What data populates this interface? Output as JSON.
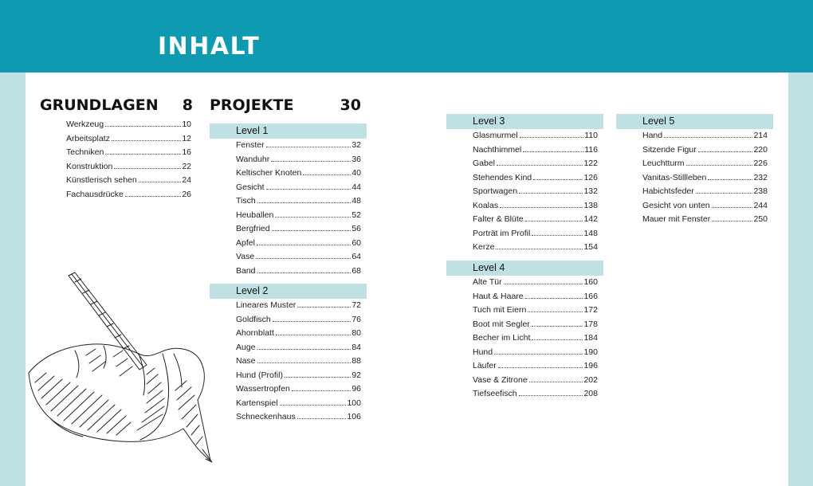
{
  "header": {
    "title": "INHALT"
  },
  "grundlagen": {
    "title": "GRUNDLAGEN",
    "page": "8",
    "items": [
      {
        "label": "Werkzeug",
        "page": "10"
      },
      {
        "label": "Arbeitsplatz",
        "page": "12"
      },
      {
        "label": "Techniken",
        "page": "16"
      },
      {
        "label": "Konstruktion",
        "page": "22"
      },
      {
        "label": "Künstlerisch sehen",
        "page": "24"
      },
      {
        "label": "Fachausdrücke",
        "page": "26"
      }
    ]
  },
  "projekte": {
    "title": "PROJEKTE",
    "page": "30"
  },
  "levels": [
    {
      "label": "Level 1",
      "items": [
        {
          "label": "Fenster",
          "page": "32"
        },
        {
          "label": "Wanduhr",
          "page": "36"
        },
        {
          "label": "Keltischer Knoten",
          "page": "40"
        },
        {
          "label": "Gesicht",
          "page": "44"
        },
        {
          "label": "Tisch",
          "page": "48"
        },
        {
          "label": "Heuballen",
          "page": "52"
        },
        {
          "label": "Bergfried",
          "page": "56"
        },
        {
          "label": "Apfel",
          "page": "60"
        },
        {
          "label": "Vase",
          "page": "64"
        },
        {
          "label": "Band",
          "page": "68"
        }
      ]
    },
    {
      "label": "Level 2",
      "items": [
        {
          "label": "Lineares Muster",
          "page": "72"
        },
        {
          "label": "Goldfisch",
          "page": "76"
        },
        {
          "label": "Ahornblatt",
          "page": "80"
        },
        {
          "label": "Auge",
          "page": "84"
        },
        {
          "label": "Nase",
          "page": "88"
        },
        {
          "label": "Hund (Profil)",
          "page": "92"
        },
        {
          "label": "Wassertropfen",
          "page": "96"
        },
        {
          "label": "Kartenspiel",
          "page": "100"
        },
        {
          "label": "Schneckenhaus",
          "page": "106"
        }
      ]
    },
    {
      "label": "Level 3",
      "items": [
        {
          "label": "Glasmurmel",
          "page": "110"
        },
        {
          "label": "Nachthimmel",
          "page": "116"
        },
        {
          "label": "Gabel",
          "page": "122"
        },
        {
          "label": "Stehendes Kind",
          "page": "126"
        },
        {
          "label": "Sportwagen",
          "page": "132"
        },
        {
          "label": "Koalas",
          "page": "138"
        },
        {
          "label": "Falter & Blüte",
          "page": "142"
        },
        {
          "label": "Porträt im Profil",
          "page": "148"
        },
        {
          "label": "Kerze",
          "page": "154"
        }
      ]
    },
    {
      "label": "Level 4",
      "items": [
        {
          "label": "Alte Tür",
          "page": "160"
        },
        {
          "label": "Haut & Haare",
          "page": "166"
        },
        {
          "label": "Tuch mit Eiern",
          "page": "172"
        },
        {
          "label": "Boot mit Segler",
          "page": "178"
        },
        {
          "label": "Becher im Licht",
          "page": "184"
        },
        {
          "label": "Hund",
          "page": "190"
        },
        {
          "label": "Läufer",
          "page": "196"
        },
        {
          "label": "Vase & Zitrone",
          "page": "202"
        },
        {
          "label": "Tiefseefisch",
          "page": "208"
        }
      ]
    },
    {
      "label": "Level 5",
      "items": [
        {
          "label": "Hand",
          "page": "214"
        },
        {
          "label": "Sitzende Figur",
          "page": "220"
        },
        {
          "label": "Leuchtturm",
          "page": "226"
        },
        {
          "label": "Vanitas-Stillleben",
          "page": "232"
        },
        {
          "label": "Habichtsfeder",
          "page": "238"
        },
        {
          "label": "Gesicht von unten",
          "page": "244"
        },
        {
          "label": "Mauer mit Fenster",
          "page": "250"
        }
      ]
    }
  ],
  "colors": {
    "header": "#0e9bb2",
    "band": "#bfe1e3"
  },
  "illustration": {
    "icon": "hand-drawing-sketch-icon"
  }
}
